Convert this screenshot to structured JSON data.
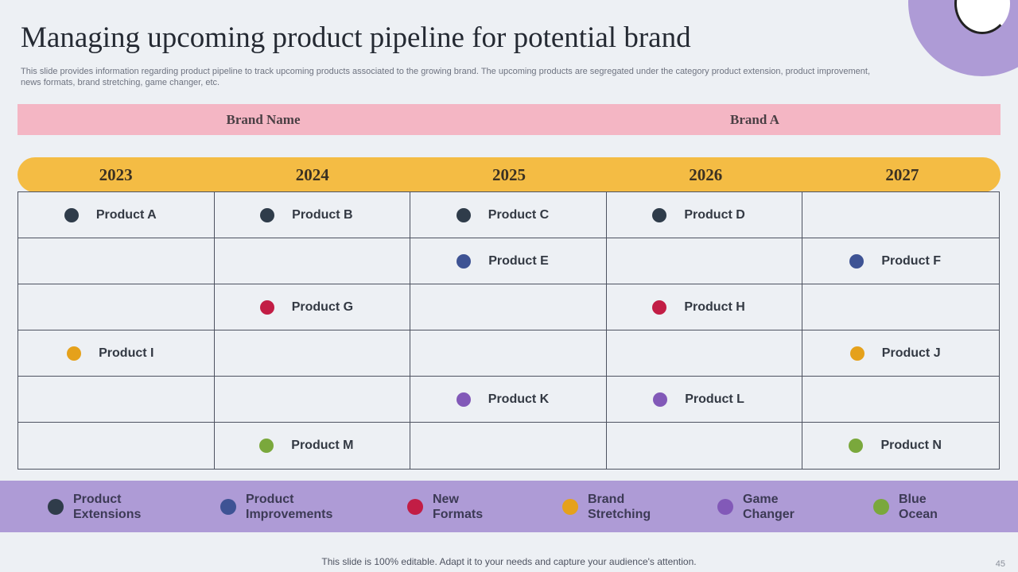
{
  "title": "Managing upcoming product pipeline for potential brand",
  "subtitle": "This slide provides information regarding product pipeline to track upcoming products associated to the growing brand. The upcoming products are segregated under the category product extension, product improvement, news formats, brand stretching, game changer, etc.",
  "brand_bar": {
    "label": "Brand Name",
    "value": "Brand A"
  },
  "years": [
    "2023",
    "2024",
    "2025",
    "2026",
    "2027"
  ],
  "colors": {
    "product_extensions": "#2f3c4a",
    "product_improvements": "#3e5394",
    "new_formats": "#c21d45",
    "brand_stretching": "#e5a11b",
    "game_changer": "#8259b8",
    "blue_ocean": "#7aa83c"
  },
  "grid": [
    [
      {
        "label": "Product A",
        "category": "product_extensions"
      },
      {
        "label": "Product B",
        "category": "product_extensions"
      },
      {
        "label": "Product C",
        "category": "product_extensions"
      },
      {
        "label": "Product D",
        "category": "product_extensions"
      },
      null
    ],
    [
      null,
      null,
      {
        "label": "Product E",
        "category": "product_improvements"
      },
      null,
      {
        "label": "Product F",
        "category": "product_improvements"
      }
    ],
    [
      null,
      {
        "label": "Product G",
        "category": "new_formats"
      },
      null,
      {
        "label": "Product H",
        "category": "new_formats"
      },
      null
    ],
    [
      {
        "label": "Product I",
        "category": "brand_stretching"
      },
      null,
      null,
      null,
      {
        "label": "Product J",
        "category": "brand_stretching"
      }
    ],
    [
      null,
      null,
      {
        "label": "Product K",
        "category": "game_changer"
      },
      {
        "label": "Product L",
        "category": "game_changer"
      },
      null
    ],
    [
      null,
      {
        "label": "Product M",
        "category": "blue_ocean"
      },
      null,
      null,
      {
        "label": "Product N",
        "category": "blue_ocean"
      }
    ]
  ],
  "legend": [
    {
      "label": "Product\nExtensions",
      "category": "product_extensions"
    },
    {
      "label": "Product\nImprovements",
      "category": "product_improvements"
    },
    {
      "label": "New\nFormats",
      "category": "new_formats"
    },
    {
      "label": "Brand\nStretching",
      "category": "brand_stretching"
    },
    {
      "label": "Game\nChanger",
      "category": "game_changer"
    },
    {
      "label": "Blue\nOcean",
      "category": "blue_ocean"
    }
  ],
  "footer": "This slide is 100% editable. Adapt it to your needs and capture your audience's attention.",
  "page_number": "45"
}
